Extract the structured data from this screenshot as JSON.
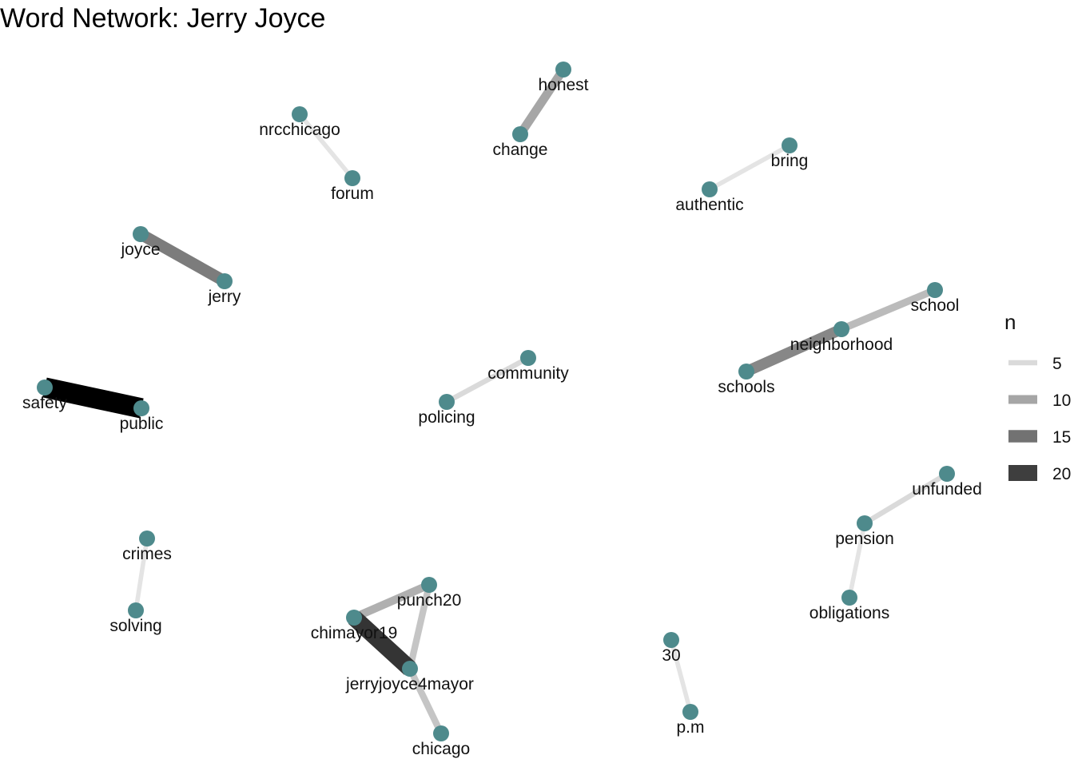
{
  "title": "Word Network: Jerry Joyce",
  "node_color": "#4e8a8c",
  "nodes": [
    {
      "id": "honest",
      "label": "honest"
    },
    {
      "id": "change",
      "label": "change"
    },
    {
      "id": "nrcchicago",
      "label": "nrcchicago"
    },
    {
      "id": "forum",
      "label": "forum"
    },
    {
      "id": "bring",
      "label": "bring"
    },
    {
      "id": "authentic",
      "label": "authentic"
    },
    {
      "id": "joyce",
      "label": "joyce"
    },
    {
      "id": "jerry",
      "label": "jerry"
    },
    {
      "id": "school",
      "label": "school"
    },
    {
      "id": "neighborhood",
      "label": "neighborhood"
    },
    {
      "id": "schools",
      "label": "schools"
    },
    {
      "id": "community",
      "label": "community"
    },
    {
      "id": "policing",
      "label": "policing"
    },
    {
      "id": "safety",
      "label": "safety"
    },
    {
      "id": "public",
      "label": "public"
    },
    {
      "id": "unfunded",
      "label": "unfunded"
    },
    {
      "id": "pension",
      "label": "pension"
    },
    {
      "id": "obligations",
      "label": "obligations"
    },
    {
      "id": "crimes",
      "label": "crimes"
    },
    {
      "id": "solving",
      "label": "solving"
    },
    {
      "id": "punch20",
      "label": "punch20"
    },
    {
      "id": "chimayor19",
      "label": "chimayor19"
    },
    {
      "id": "jerryjoyce4mayor",
      "label": "jerryjoyce4mayor"
    },
    {
      "id": "chicago",
      "label": "chicago"
    },
    {
      "id": "30",
      "label": "30"
    },
    {
      "id": "p.m",
      "label": "p.m"
    }
  ],
  "edges": [
    {
      "from": "change",
      "to": "honest",
      "n": 10
    },
    {
      "from": "nrcchicago",
      "to": "forum",
      "n": 4
    },
    {
      "from": "authentic",
      "to": "bring",
      "n": 4
    },
    {
      "from": "jerry",
      "to": "joyce",
      "n": 14
    },
    {
      "from": "neighborhood",
      "to": "school",
      "n": 8
    },
    {
      "from": "schools",
      "to": "neighborhood",
      "n": 13
    },
    {
      "from": "community",
      "to": "policing",
      "n": 5
    },
    {
      "from": "public",
      "to": "safety",
      "n": 26
    },
    {
      "from": "unfunded",
      "to": "pension",
      "n": 5
    },
    {
      "from": "pension",
      "to": "obligations",
      "n": 4
    },
    {
      "from": "crimes",
      "to": "solving",
      "n": 4
    },
    {
      "from": "chimayor19",
      "to": "punch20",
      "n": 9
    },
    {
      "from": "punch20",
      "to": "jerryjoyce4mayor",
      "n": 7
    },
    {
      "from": "chimayor19",
      "to": "jerryjoyce4mayor",
      "n": 21
    },
    {
      "from": "jerryjoyce4mayor",
      "to": "chicago",
      "n": 7
    },
    {
      "from": "30",
      "to": "p.m",
      "n": 4
    }
  ],
  "legend": {
    "title": "n",
    "items": [
      {
        "label": "5",
        "n": 5
      },
      {
        "label": "10",
        "n": 10
      },
      {
        "label": "15",
        "n": 15
      },
      {
        "label": "20",
        "n": 20
      }
    ]
  }
}
